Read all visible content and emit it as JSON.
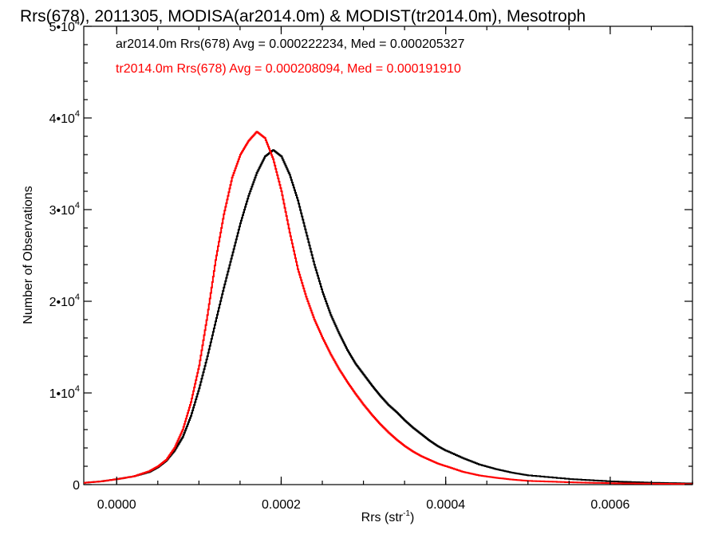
{
  "chart_data": {
    "type": "line",
    "title": "Rrs(678), 2011305, MODISA(ar2014.0m) & MODIST(tr2014.0m), Mesotroph",
    "xlabel": "Rrs (str",
    "xlabel_sup": "-1",
    "xlabel_suffix": ")",
    "ylabel": "Number of Observations",
    "xlim": [
      -4e-05,
      0.0007
    ],
    "ylim": [
      0,
      50000
    ],
    "x_ticks": [
      {
        "value": 0.0,
        "label": "0.0000"
      },
      {
        "value": 0.0002,
        "label": "0.0002"
      },
      {
        "value": 0.0004,
        "label": "0.0004"
      },
      {
        "value": 0.0006,
        "label": "0.0006"
      }
    ],
    "y_ticks": [
      {
        "value": 0,
        "mant": "0",
        "exp": ""
      },
      {
        "value": 10000,
        "mant": "1•10",
        "exp": "4"
      },
      {
        "value": 20000,
        "mant": "2•10",
        "exp": "4"
      },
      {
        "value": 30000,
        "mant": "3•10",
        "exp": "4"
      },
      {
        "value": 40000,
        "mant": "4•10",
        "exp": "4"
      },
      {
        "value": 50000,
        "mant": "5•10",
        "exp": "4"
      }
    ],
    "annotations": [
      {
        "text": "ar2014.0m Rrs(678) Avg = 0.000222234, Med = 0.000205327",
        "color": "#000000"
      },
      {
        "text": "tr2014.0m Rrs(678) Avg = 0.000208094, Med = 0.000191910",
        "color": "#ff0000"
      }
    ],
    "series": [
      {
        "color": "#000000",
        "x": [
          -4e-05,
          -2e-05,
          0.0,
          2e-05,
          4e-05,
          5e-05,
          6e-05,
          7e-05,
          8e-05,
          9e-05,
          0.0001,
          0.00011,
          0.00012,
          0.00013,
          0.00014,
          0.00015,
          0.00016,
          0.00017,
          0.00018,
          0.00019,
          0.0002,
          0.00021,
          0.00022,
          0.00023,
          0.00024,
          0.00025,
          0.00026,
          0.00027,
          0.00028,
          0.00029,
          0.0003,
          0.00031,
          0.00032,
          0.00033,
          0.00034,
          0.00035,
          0.00036,
          0.00037,
          0.00038,
          0.00039,
          0.0004,
          0.00042,
          0.00044,
          0.00046,
          0.00048,
          0.0005,
          0.00055,
          0.0006,
          0.00065,
          0.0007
        ],
        "y": [
          200,
          350,
          600,
          900,
          1400,
          1900,
          2600,
          3700,
          5200,
          7500,
          10500,
          14000,
          17800,
          21500,
          25000,
          28500,
          31500,
          34000,
          35800,
          36500,
          35800,
          33800,
          31000,
          27500,
          24000,
          21000,
          18500,
          16500,
          14700,
          13200,
          12000,
          10800,
          9700,
          8700,
          7900,
          7000,
          6200,
          5500,
          4800,
          4200,
          3700,
          2900,
          2200,
          1700,
          1300,
          1000,
          600,
          350,
          200,
          120
        ]
      },
      {
        "color": "#ff0000",
        "x": [
          -4e-05,
          -2e-05,
          0.0,
          2e-05,
          4e-05,
          5e-05,
          6e-05,
          7e-05,
          8e-05,
          9e-05,
          0.0001,
          0.00011,
          0.00012,
          0.00013,
          0.00014,
          0.00015,
          0.00016,
          0.00017,
          0.00018,
          0.00019,
          0.0002,
          0.00021,
          0.00022,
          0.00023,
          0.00024,
          0.00025,
          0.00026,
          0.00027,
          0.00028,
          0.00029,
          0.0003,
          0.00031,
          0.00032,
          0.00033,
          0.00034,
          0.00035,
          0.00036,
          0.00037,
          0.00038,
          0.00039,
          0.0004,
          0.00042,
          0.00044,
          0.00046,
          0.00048,
          0.0005,
          0.00055,
          0.0006,
          0.00065,
          0.0007
        ],
        "y": [
          200,
          350,
          600,
          900,
          1500,
          2000,
          2700,
          4000,
          6000,
          9000,
          13000,
          18500,
          24500,
          29500,
          33500,
          36000,
          37500,
          38500,
          37800,
          35500,
          32000,
          27500,
          23500,
          20500,
          18000,
          16000,
          14200,
          12600,
          11200,
          9900,
          8700,
          7600,
          6600,
          5700,
          4900,
          4200,
          3600,
          3100,
          2700,
          2300,
          2000,
          1400,
          1000,
          750,
          550,
          400,
          250,
          150,
          100,
          60
        ]
      }
    ]
  }
}
